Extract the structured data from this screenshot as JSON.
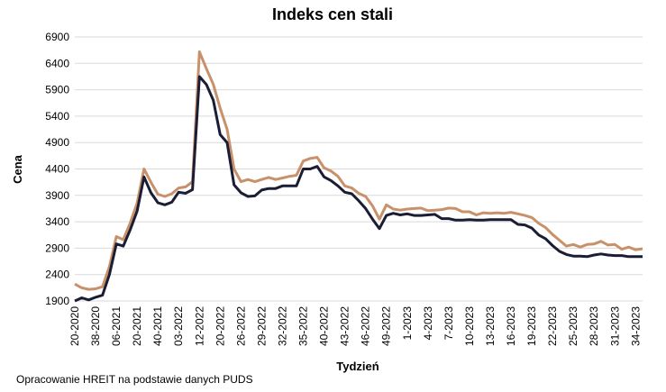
{
  "chart_data": {
    "type": "line",
    "title": "Indeks cen stali",
    "y_label": "Cena",
    "x_label": "Tydzień",
    "footnote": "Opracowanie HREIT na podstawie danych PUDS",
    "categories": [
      "20-2020",
      null,
      null,
      "38-2020",
      null,
      null,
      "06-2021",
      null,
      null,
      "20-2021",
      null,
      null,
      "40-2021",
      null,
      null,
      "03-2022",
      null,
      null,
      "12-2022",
      null,
      null,
      "20-2022",
      null,
      null,
      "26-2022",
      null,
      null,
      "29-2022",
      null,
      null,
      "32-2022",
      null,
      null,
      "35-2022",
      null,
      null,
      "40-2022",
      null,
      null,
      "43-2022",
      null,
      null,
      "46-2022",
      null,
      null,
      "49-2022",
      null,
      null,
      "1-2023",
      null,
      null,
      "4-2023",
      null,
      null,
      "7-2023",
      null,
      null,
      "10-2023",
      null,
      null,
      "13-2023",
      null,
      null,
      "16-2023",
      null,
      null,
      "19-2023",
      null,
      null,
      "22-2023",
      null,
      null,
      "25-2023",
      null,
      null,
      "28-2023",
      null,
      null,
      "31-2023",
      null,
      null,
      "34-2023",
      null
    ],
    "series": [
      {
        "color": "#c8916a",
        "values": [
          2220,
          2150,
          2120,
          2130,
          2170,
          2550,
          3120,
          3060,
          3380,
          3750,
          4400,
          4150,
          3920,
          3880,
          3930,
          4040,
          4060,
          4160,
          6620,
          6300,
          6000,
          5550,
          5150,
          4400,
          4160,
          4200,
          4160,
          4200,
          4240,
          4200,
          4230,
          4260,
          4280,
          4550,
          4600,
          4620,
          4420,
          4360,
          4260,
          4080,
          4040,
          3940,
          3880,
          3700,
          3450,
          3720,
          3640,
          3620,
          3640,
          3650,
          3660,
          3610,
          3620,
          3630,
          3660,
          3650,
          3590,
          3590,
          3530,
          3570,
          3560,
          3570,
          3560,
          3580,
          3550,
          3520,
          3480,
          3370,
          3290,
          3160,
          3050,
          2940,
          2970,
          2920,
          2970,
          2980,
          3030,
          2960,
          2970,
          2880,
          2920,
          2870,
          2890
        ]
      },
      {
        "color": "#1a1d33",
        "values": [
          1900,
          1960,
          1920,
          1970,
          2010,
          2400,
          2980,
          2940,
          3250,
          3600,
          4250,
          3950,
          3760,
          3720,
          3770,
          3960,
          3940,
          4010,
          6150,
          6000,
          5700,
          5050,
          4900,
          4100,
          3950,
          3880,
          3890,
          4000,
          4030,
          4030,
          4080,
          4080,
          4080,
          4400,
          4400,
          4450,
          4250,
          4180,
          4080,
          3960,
          3930,
          3800,
          3650,
          3450,
          3270,
          3520,
          3560,
          3530,
          3550,
          3520,
          3520,
          3530,
          3540,
          3460,
          3460,
          3430,
          3430,
          3440,
          3430,
          3430,
          3440,
          3440,
          3440,
          3440,
          3350,
          3340,
          3280,
          3150,
          3080,
          2950,
          2840,
          2780,
          2750,
          2750,
          2740,
          2770,
          2790,
          2770,
          2760,
          2760,
          2740,
          2740,
          2740
        ]
      }
    ],
    "ylim": [
      1900,
      6900
    ],
    "yticks": [
      1900,
      2400,
      2900,
      3400,
      3900,
      4400,
      4900,
      5400,
      5900,
      6400,
      6900
    ],
    "grid": true
  }
}
